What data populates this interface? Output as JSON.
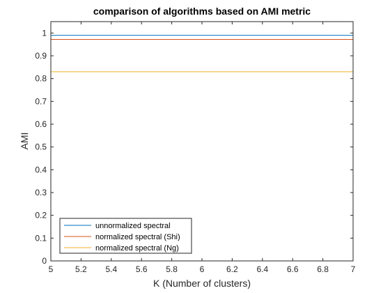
{
  "chart_data": {
    "type": "line",
    "title": "comparison of algorithms based on AMI metric",
    "xlabel": "K (Number of clusters)",
    "ylabel": "AMI",
    "xlim": [
      5,
      7
    ],
    "ylim": [
      0,
      1.05
    ],
    "xticks": [
      "5",
      "5.2",
      "5.4",
      "5.6",
      "5.8",
      "6",
      "6.2",
      "6.4",
      "6.6",
      "6.8",
      "7"
    ],
    "xtick_values": [
      5,
      5.2,
      5.4,
      5.6,
      5.8,
      6,
      6.2,
      6.4,
      6.6,
      6.8,
      7
    ],
    "yticks": [
      "0",
      "0.1",
      "0.2",
      "0.3",
      "0.4",
      "0.5",
      "0.6",
      "0.7",
      "0.8",
      "0.9",
      "1"
    ],
    "ytick_values": [
      0,
      0.1,
      0.2,
      0.3,
      0.4,
      0.5,
      0.6,
      0.7,
      0.8,
      0.9,
      1.0
    ],
    "grid": false,
    "legend_position": "bottom-left",
    "series": [
      {
        "name": "unnormalized spectral",
        "color": "#0072BD",
        "x": [
          5,
          7
        ],
        "y": [
          0.99,
          0.99
        ]
      },
      {
        "name": "normalized spectral (Shi)",
        "color": "#D95319",
        "x": [
          5,
          7
        ],
        "y": [
          0.972,
          0.972
        ]
      },
      {
        "name": "normalized spectral (Ng)",
        "color": "#EDB120",
        "x": [
          5,
          7
        ],
        "y": [
          0.83,
          0.83
        ]
      }
    ]
  }
}
